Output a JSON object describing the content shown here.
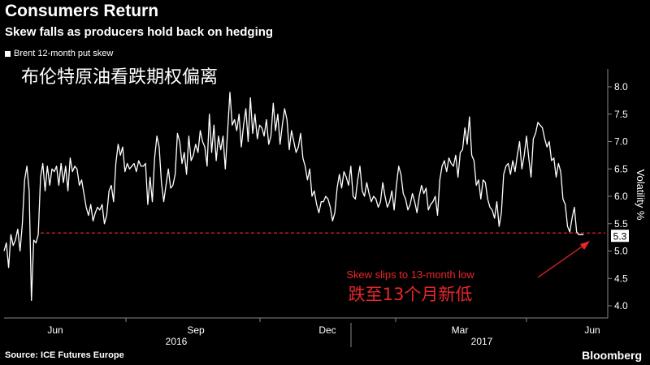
{
  "header": {
    "title": "Consumers Return",
    "subtitle": "Skew falls as producers hold back on hedging",
    "cn_title": "布伦特原油看跌期权偏离"
  },
  "footer": {
    "source": "Source: ICE Futures Europe",
    "brand": "Bloomberg"
  },
  "colors": {
    "background": "#000000",
    "line": "#ffffff",
    "annotation": "#e8262b"
  },
  "chart_data": {
    "type": "line",
    "ylabel": "Volatility %",
    "ylim": [
      3.85,
      8.3
    ],
    "yticks": [
      "4.0",
      "4.5",
      "5.0",
      "5.5",
      "6.0",
      "6.5",
      "7.0",
      "7.5",
      "8.0"
    ],
    "y_axis_side": "right",
    "xticks": [
      "Jun",
      "Sep",
      "Dec",
      "Mar",
      "Jun"
    ],
    "year_labels": [
      "2016",
      "2017"
    ],
    "legend": "Brent 12-month put skew",
    "legend_position": "top-left",
    "last_value": "5.3",
    "reference_line": {
      "value": 5.33,
      "style": "dashed",
      "color": "#e8262b"
    },
    "annotation": {
      "text": "Skew slips to 13-month low",
      "text_cn": "跌至13个月新低"
    },
    "x_index_range": [
      0,
      260
    ],
    "series": [
      {
        "values": [
          5.0,
          5.15,
          4.7,
          5.3,
          5.1,
          5.2,
          5.4,
          5.0,
          5.5,
          6.3,
          6.55,
          6.1,
          4.1,
          5.2,
          5.15,
          5.3,
          6.35,
          6.6,
          6.1,
          6.55,
          6.2,
          6.5,
          6.45,
          6.55,
          6.2,
          6.6,
          6.25,
          6.55,
          6.1,
          6.7,
          6.45,
          6.55,
          6.5,
          6.2,
          6.3,
          6.05,
          5.8,
          5.65,
          5.85,
          5.55,
          5.7,
          5.8,
          5.75,
          5.85,
          5.5,
          5.65,
          6.1,
          6.2,
          5.9,
          6.6,
          6.95,
          6.75,
          6.9,
          6.45,
          6.6,
          6.5,
          6.55,
          6.6,
          6.45,
          6.65,
          6.55,
          6.55,
          6.6,
          5.85,
          6.35,
          5.9,
          6.7,
          7.1,
          6.9,
          6.25,
          5.9,
          6.2,
          6.5,
          6.15,
          6.2,
          6.4,
          7.15,
          7.0,
          6.6,
          6.8,
          6.4,
          7.1,
          6.65,
          6.75,
          6.95,
          6.8,
          7.2,
          7.0,
          6.9,
          6.55,
          7.5,
          6.8,
          7.3,
          6.65,
          7.1,
          6.85,
          7.1,
          6.5,
          7.2,
          7.9,
          7.3,
          7.4,
          7.2,
          7.5,
          6.9,
          7.3,
          7.6,
          7.0,
          7.8,
          7.15,
          7.5,
          7.05,
          7.3,
          7.25,
          7.1,
          7.4,
          6.95,
          7.1,
          7.7,
          7.2,
          7.5,
          6.95,
          7.3,
          7.6,
          7.4,
          6.85,
          7.2,
          7.0,
          6.8,
          6.9,
          7.15,
          6.7,
          6.55,
          6.3,
          6.5,
          6.0,
          6.1,
          5.85,
          5.7,
          5.9,
          5.9,
          6.0,
          5.95,
          5.8,
          5.55,
          5.7,
          6.15,
          6.4,
          6.15,
          6.45,
          6.35,
          6.2,
          6.55,
          6.0,
          5.95,
          6.3,
          6.55,
          6.1,
          6.0,
          6.25,
          6.05,
          5.9,
          6.0,
          5.95,
          5.8,
          5.9,
          6.25,
          6.0,
          5.8,
          5.9,
          6.1,
          5.75,
          6.2,
          6.55,
          6.4,
          6.05,
          5.95,
          5.75,
          5.85,
          6.05,
          5.9,
          5.7,
          6.0,
          6.2,
          6.05,
          6.15,
          5.75,
          5.85,
          5.9,
          6.0,
          5.65,
          6.3,
          6.55,
          6.65,
          6.45,
          6.7,
          6.6,
          6.55,
          6.75,
          6.35,
          6.8,
          6.85,
          7.25,
          6.95,
          7.45,
          6.75,
          6.65,
          6.2,
          6.3,
          5.95,
          6.3,
          6.25,
          5.95,
          5.8,
          5.75,
          5.6,
          5.9,
          5.45,
          5.7,
          6.4,
          6.55,
          6.6,
          6.4,
          6.65,
          6.45,
          6.75,
          7.0,
          6.5,
          6.75,
          7.1,
          6.7,
          6.35,
          7.05,
          7.15,
          7.35,
          7.3,
          7.25,
          7.05,
          6.9,
          7.0,
          6.65,
          6.7,
          6.35,
          6.6,
          6.45,
          5.95,
          5.85,
          5.45,
          5.35,
          5.6,
          5.8,
          5.35,
          5.3,
          5.3,
          5.3
        ]
      }
    ]
  }
}
